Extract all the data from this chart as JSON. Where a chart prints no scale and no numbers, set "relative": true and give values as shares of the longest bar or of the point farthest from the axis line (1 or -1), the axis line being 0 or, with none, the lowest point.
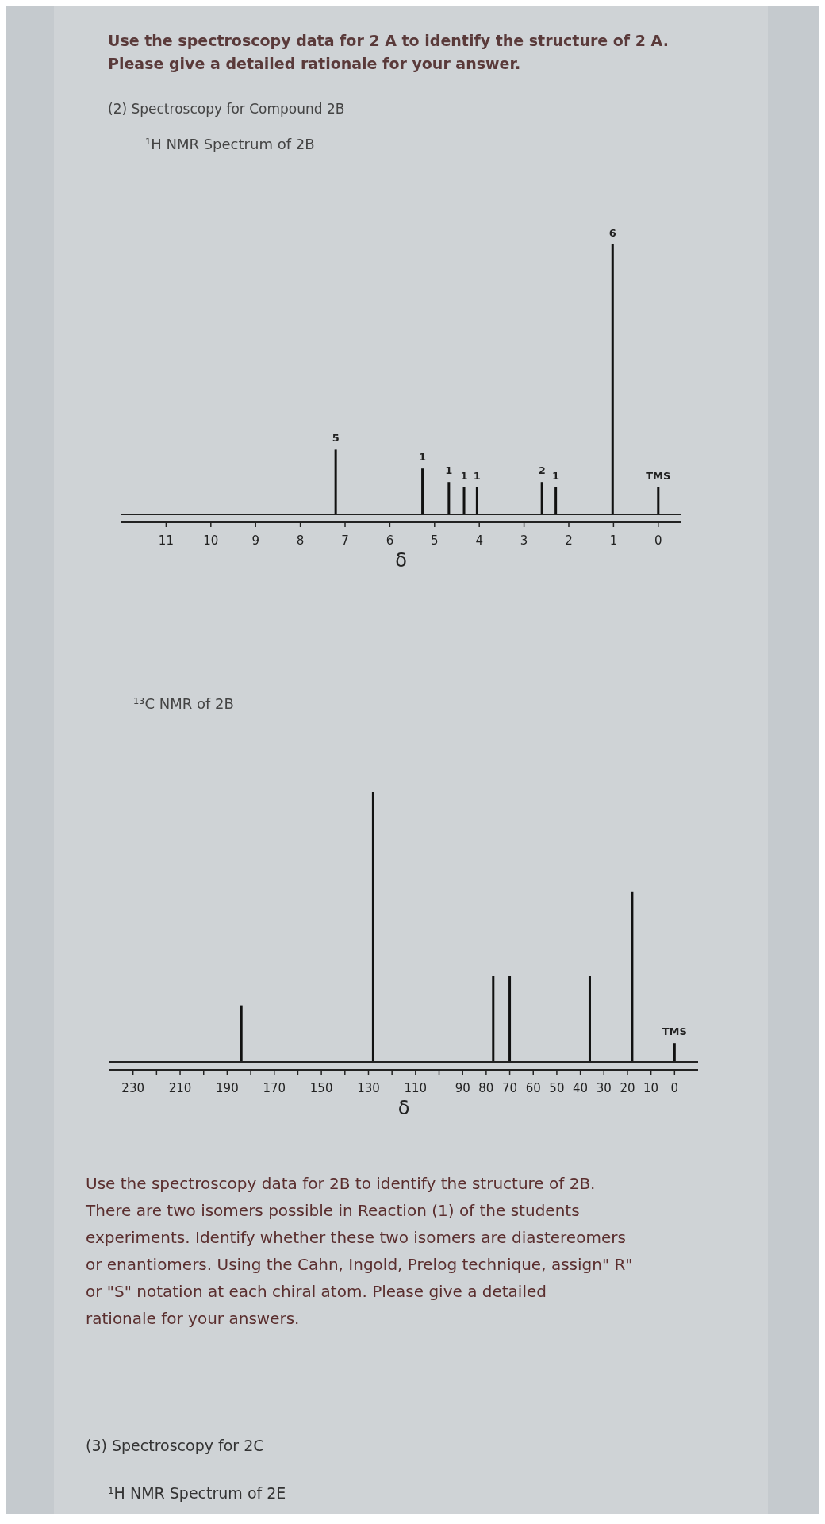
{
  "chart_data": [
    {
      "type": "bar",
      "title": "¹H NMR Spectrum of 2B",
      "xlabel": "δ",
      "relative": true,
      "color": "#111111",
      "annotations": [
        "Use the spectroscopy data for 2 A to identify the structure of 2 A. Please give a detailed rationale for your answer.",
        "(2)  Spectroscopy for Compound 2B",
        {
          "text": "5",
          "x": 7.21,
          "y": 0.24
        },
        {
          "text": "1",
          "x": 5.27,
          "y": 0.17
        },
        {
          "text": "1",
          "x": 4.68,
          "y": 0.12
        },
        {
          "text": "1",
          "x": 4.34,
          "y": 0.1
        },
        {
          "text": "1",
          "x": 4.05,
          "y": 0.1
        },
        {
          "text": "2",
          "x": 2.6,
          "y": 0.12
        },
        {
          "text": "1",
          "x": 2.29,
          "y": 0.1
        },
        {
          "text": "6",
          "x": 1.02,
          "y": 1
        },
        {
          "text": "TMS",
          "x": 0,
          "y": 0.1
        }
      ],
      "x": [
        7.21,
        5.27,
        4.68,
        4.34,
        4.05,
        2.6,
        2.29,
        1.02,
        0
      ],
      "values": [
        0.24,
        0.17,
        0.12,
        0.1,
        0.1,
        0.12,
        0.1,
        1,
        0.1
      ],
      "xlim": [
        12,
        -0.5
      ],
      "xticks": [
        11,
        10,
        9,
        8,
        7,
        6,
        5,
        4,
        3,
        2,
        1,
        0
      ]
    },
    {
      "type": "bar",
      "title": "¹³C NMR of 2B",
      "xlabel": "δ",
      "relative": true,
      "color": "#111111",
      "annotations": [
        "Use the spectroscopy data for 2B to identify the structure of 2B. There are two isomers possible in Reaction (1) of the students experiments.  Identify whether these two isomers are diastereomers or enantiomers. Using the Cahn, Ingold, Prelog technique, assign\" R\" or \"S\" notation at each chiral atom. Please give a detailed rationale for your answers.",
        "(3) Spectroscopy for 2C",
        "¹H NMR Spectrum of 2E",
        {
          "text": "TMS",
          "x": 0,
          "y": 0.07
        }
      ],
      "x": [
        184,
        128,
        77,
        70,
        36,
        18,
        0
      ],
      "values": [
        0.21,
        1,
        0.32,
        0.32,
        0.32,
        0.63,
        0.07
      ],
      "xlim": [
        240,
        -10
      ],
      "xticks": [
        230,
        {
          "value": 220,
          "label": null
        },
        210,
        {
          "value": 200,
          "label": null
        },
        190,
        {
          "value": 180,
          "label": null
        },
        170,
        {
          "value": 160,
          "label": null
        },
        150,
        {
          "value": 140,
          "label": null
        },
        130,
        {
          "value": 120,
          "label": null
        },
        110,
        {
          "value": 100,
          "label": null
        },
        90,
        80,
        70,
        60,
        50,
        40,
        30,
        20,
        10,
        0
      ]
    }
  ]
}
